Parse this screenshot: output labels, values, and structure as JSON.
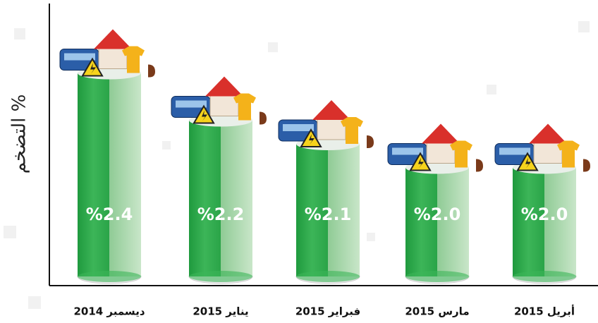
{
  "chart_data": {
    "type": "bar",
    "y_label": "التضخم %",
    "categories": [
      "ديسمبر 2014",
      "يناير 2015",
      "فبراير 2015",
      "مارس 2015",
      "أبريل 2015"
    ],
    "values": [
      2.4,
      2.2,
      2.1,
      2.0,
      2.0
    ],
    "value_labels": [
      "%2.4",
      "%2.2",
      "%2.1",
      "%2.0",
      "%2.0"
    ],
    "color": "#2eaa4a",
    "ylim": [
      1.5,
      2.5
    ]
  }
}
